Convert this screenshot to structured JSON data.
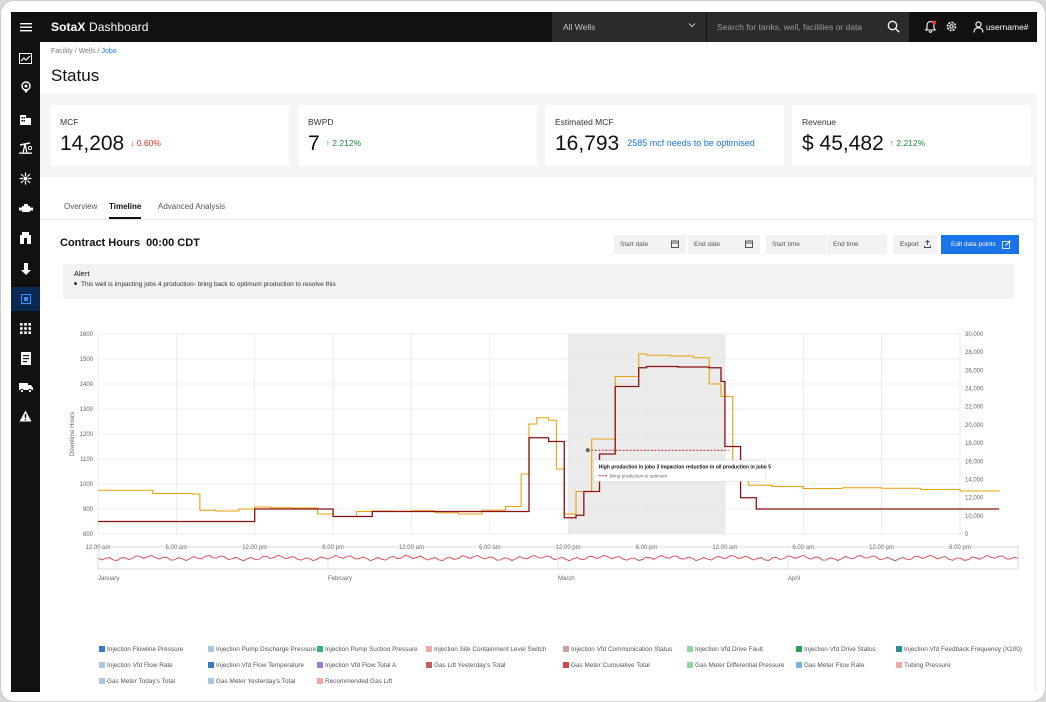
{
  "app": {
    "brand_bold": "SotaX",
    "brand_rest": " Dashboard"
  },
  "topbar": {
    "well_select": "All Wells",
    "search_placeholder": "Search for tanks, well, facilities or data",
    "username": "username#"
  },
  "breadcrumb": {
    "trail": "Facility / Wells / ",
    "current": "Jobo"
  },
  "page_title": "Status",
  "kpis": [
    {
      "label": "MCF",
      "value": "14,208",
      "delta": "↓ 0.60%",
      "trend": "down"
    },
    {
      "label": "BWPD",
      "value": "7",
      "delta": "↑ 2.212%",
      "trend": "up"
    },
    {
      "label": "Estimated MCF",
      "value": "16,793",
      "note": "2585 mcf needs to be optimised"
    },
    {
      "label": "Revenue",
      "value": "$ 45,482",
      "delta": "↑ 2.212%",
      "trend": "up"
    }
  ],
  "tabs": [
    "Overview",
    "Timeline",
    "Advanced Analysis"
  ],
  "active_tab": "Timeline",
  "contract": {
    "label": "Contract Hours",
    "time": "00:00 CDT"
  },
  "filters": {
    "start_date": "Start date",
    "end_date": "End date",
    "start_time": "Start time",
    "end_time": "End time",
    "export": "Export",
    "edit": "Edit data points"
  },
  "alert": {
    "title": "Alert",
    "message": "This well is impacting jobs 4 production- bring back to optimum production to resolve this"
  },
  "colors": {
    "accent": "#1a73e8",
    "gold": "#e8a20c",
    "maroon": "#8b1010",
    "red_line": "#d62d3a"
  },
  "chart_data": {
    "type": "line",
    "ylabel": "Downtime Hours",
    "ylim": [
      800,
      1600
    ],
    "y_ticks": [
      800,
      900,
      1000,
      1100,
      1200,
      1300,
      1400,
      1500,
      1600
    ],
    "y2lim": [
      0,
      30000
    ],
    "y2_ticks": [
      "0",
      "10,000",
      "12,000",
      "14,000",
      "16,000",
      "18,000",
      "20,000",
      "22,000",
      "24,000",
      "26,000",
      "28,000",
      "30,000"
    ],
    "x_ticks": [
      "12.00 am",
      "6.00 am",
      "12.00 pm",
      "6.00 pm",
      "12.00 am",
      "6.00 am",
      "12.00 pm",
      "6.00 pm",
      "12.00 am",
      "6.00 am",
      "12.00 pm",
      "6.00 pm"
    ],
    "highlight_range": [
      6,
      8
    ],
    "series": [
      {
        "color": "#e8a20c",
        "x": [
          0,
          0.7,
          1.2,
          1.3,
          1.5,
          1.8,
          2.0,
          2.2,
          2.5,
          2.8,
          3.0,
          3.3,
          3.5,
          3.8,
          4.0,
          4.3,
          4.6,
          4.9,
          5.2,
          5.4,
          5.5,
          5.6,
          5.75,
          5.85,
          5.95,
          6.1,
          6.3,
          6.6,
          6.9,
          7.0,
          7.3,
          7.6,
          7.8,
          7.95,
          8.1,
          8.3,
          8.6,
          9.0,
          9.5,
          10.0,
          10.5,
          11.0,
          11.5
        ],
        "y": [
          975,
          962,
          960,
          895,
          892,
          900,
          908,
          905,
          904,
          880,
          870,
          890,
          892,
          891,
          893,
          885,
          880,
          895,
          910,
          1040,
          1240,
          1265,
          1255,
          1060,
          880,
          970,
          1180,
          1430,
          1520,
          1515,
          1512,
          1505,
          1400,
          1350,
          1040,
          995,
          990,
          982,
          985,
          983,
          978,
          972,
          975
        ]
      },
      {
        "color": "#8b1010",
        "x": [
          0,
          1.0,
          1.9,
          2.0,
          2.5,
          2.9,
          3.0,
          3.4,
          3.5,
          4.0,
          4.5,
          5.0,
          5.2,
          5.4,
          5.5,
          5.75,
          5.85,
          5.95,
          6.1,
          6.2,
          6.4,
          6.6,
          6.9,
          7.0,
          7.4,
          7.8,
          7.95,
          8.0,
          8.2,
          8.4,
          9.0,
          10.0,
          11.0,
          11.5
        ],
        "y": [
          850,
          850,
          850,
          900,
          900,
          900,
          870,
          870,
          890,
          890,
          890,
          890,
          890,
          890,
          1185,
          1170,
          1170,
          865,
          875,
          970,
          1120,
          1390,
          1465,
          1470,
          1468,
          1465,
          1410,
          1150,
          945,
          900,
          900,
          900,
          900,
          900
        ]
      }
    ],
    "annotation": {
      "title": "High production in jobo 3 impaction reduction in oil production in jobo 5",
      "legend": "Bring production to optimum"
    }
  },
  "overview_months": [
    "January",
    "February",
    "March",
    "April"
  ],
  "legend": [
    {
      "label": "Injection Flowline Pressure",
      "color": "#3a78c2"
    },
    {
      "label": "Injection Pump Discharge Pressure",
      "color": "#a9c6ea"
    },
    {
      "label": "Injection Pump Suction Pressure",
      "color": "#39b37c"
    },
    {
      "label": "Injection Site Containment Level Switch",
      "color": "#f0a9a3"
    },
    {
      "label": "Injection Vfd Communication Status",
      "color": "#c9a09a"
    },
    {
      "label": "Injection Vfd Drive Fault",
      "color": "#8fd69a"
    },
    {
      "label": "Injection Vfd Drive Status",
      "color": "#2f9e57"
    },
    {
      "label": "Injection Vfd Feedback Frequency (X100)",
      "color": "#2a8c99"
    },
    {
      "label": "Injection Vfd Flow Rate",
      "color": "#a9c6ea"
    },
    {
      "label": "Injection Vfd Flow Temperature",
      "color": "#3a78c2"
    },
    {
      "label": "Injection Vfd Flow Total A",
      "color": "#9b7ad8"
    },
    {
      "label": "Gas Lift Yesterday's Total",
      "color": "#c85b5b"
    },
    {
      "label": "Gas Meter Cumulative Total",
      "color": "#d64545"
    },
    {
      "label": "Gas Meter Differential Pressure",
      "color": "#8fd69a"
    },
    {
      "label": "Gas Meter Flow Rate",
      "color": "#7fb0d6"
    },
    {
      "label": "Tubing Pressure",
      "color": "#f0a9a3"
    },
    {
      "label": "Gas Meter Today's Total",
      "color": "#a9c6ea"
    },
    {
      "label": "Gas Meter Yesterday's Total",
      "color": "#a9c6ea"
    },
    {
      "label": "Recommended Gas Lift",
      "color": "#f0a9a3"
    }
  ]
}
